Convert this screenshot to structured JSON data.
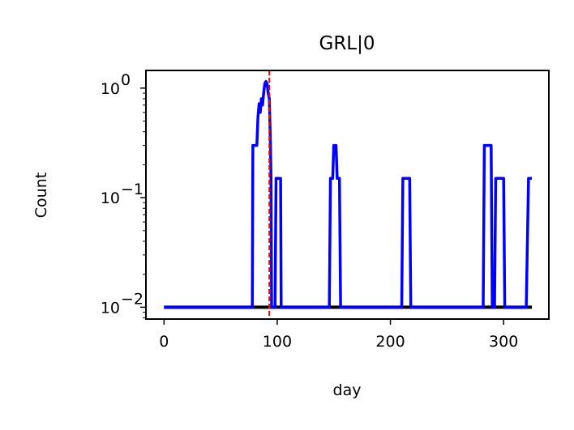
{
  "chart_data": {
    "type": "line",
    "title": "GRL|0",
    "xlabel": "day",
    "ylabel": "Count",
    "xlim": [
      -16,
      340
    ],
    "ylim": [
      0.0078,
      1.45
    ],
    "yscale": "log",
    "grid": false,
    "x_ticks": [
      0,
      100,
      200,
      300
    ],
    "x_tick_labels": [
      "0",
      "100",
      "200",
      "300"
    ],
    "y_ticks": [
      0.01,
      0.1,
      1
    ],
    "y_tick_labels": [
      {
        "base": "10",
        "exp": "−2"
      },
      {
        "base": "10",
        "exp": "−1"
      },
      {
        "base": "10",
        "exp": "0"
      }
    ],
    "colors": {
      "series_main": "#0000ff",
      "series_baseline": "#000000",
      "marker_line": "#ff0000"
    },
    "vline": {
      "x": 93,
      "style": "dashed",
      "color": "#ff0000"
    },
    "series": [
      {
        "color": "#000000",
        "x": [
          0,
          325
        ],
        "y": [
          0.01,
          0.01
        ]
      },
      {
        "color": "#0000ff",
        "x": [
          0,
          78,
          78.5,
          80,
          82,
          83,
          84,
          85,
          86,
          87,
          88,
          89,
          90,
          91,
          92,
          93,
          94,
          94.5,
          95,
          96,
          98,
          99,
          100,
          102,
          103,
          103.5,
          104,
          146,
          147,
          149,
          150,
          152,
          153,
          155,
          156,
          210,
          211,
          217,
          218,
          282,
          283,
          289,
          290,
          292,
          293,
          300,
          301,
          320,
          322,
          325
        ],
        "y": [
          0.01,
          0.01,
          0.3,
          0.3,
          0.3,
          0.55,
          0.72,
          0.6,
          0.8,
          0.7,
          0.9,
          1.1,
          1.15,
          1.1,
          0.9,
          0.8,
          0.3,
          0.15,
          0.01,
          0.01,
          0.01,
          0.15,
          0.15,
          0.15,
          0.15,
          0.01,
          0.01,
          0.01,
          0.15,
          0.15,
          0.3,
          0.3,
          0.15,
          0.15,
          0.01,
          0.01,
          0.15,
          0.15,
          0.01,
          0.01,
          0.3,
          0.3,
          0.01,
          0.01,
          0.15,
          0.15,
          0.01,
          0.01,
          0.15,
          0.15
        ]
      }
    ]
  }
}
